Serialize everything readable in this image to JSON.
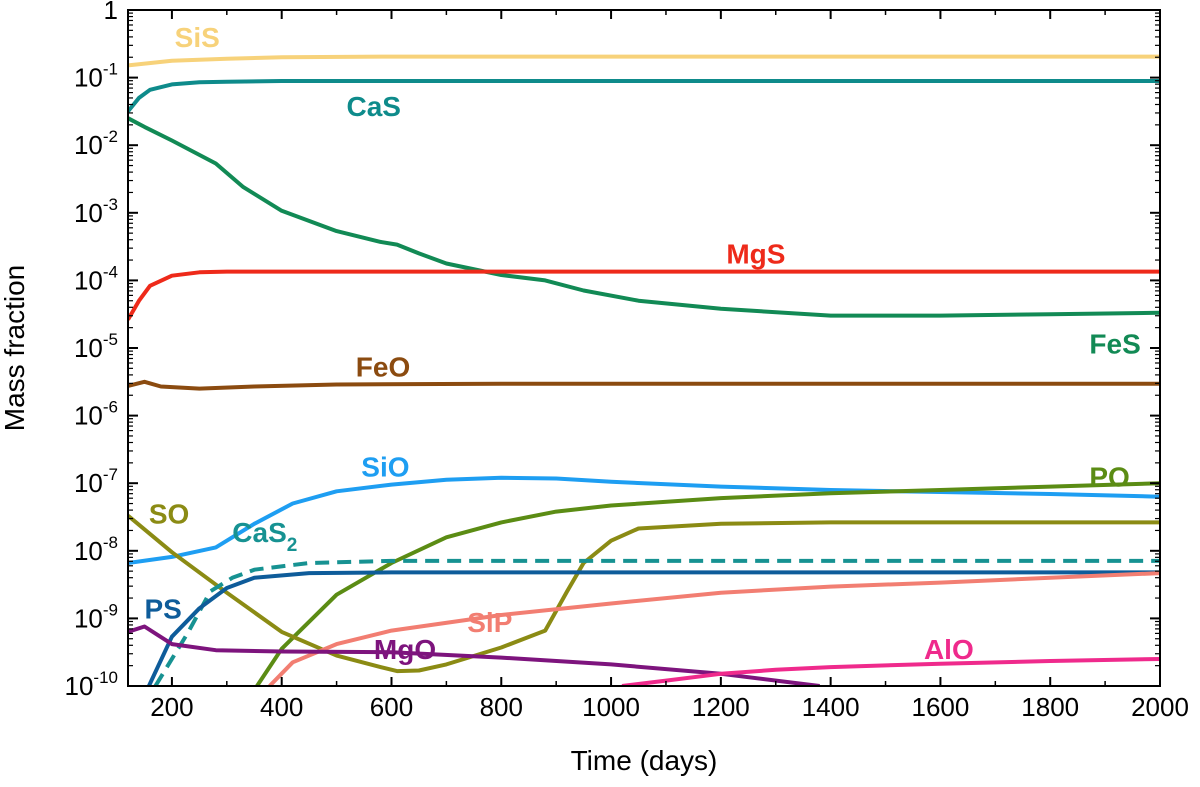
{
  "chart_data": {
    "type": "line",
    "title": "",
    "xlabel": "Time (days)",
    "ylabel": "Mass fraction",
    "xlim": [
      120,
      2000
    ],
    "ylim_log10": [
      -10,
      0
    ],
    "yscale": "log",
    "grid": false,
    "x_ticks": [
      200,
      400,
      600,
      800,
      1000,
      1200,
      1400,
      1600,
      1800,
      2000
    ],
    "x_tick_labels": [
      "200",
      "400",
      "600",
      "800",
      "1000",
      "1200",
      "1400",
      "1600",
      "1800",
      "2000"
    ],
    "y_tick_labels": [
      {
        "exp": 0,
        "base": "1",
        "sup": ""
      },
      {
        "exp": -1,
        "base": "10",
        "sup": "-1"
      },
      {
        "exp": -2,
        "base": "10",
        "sup": "-2"
      },
      {
        "exp": -3,
        "base": "10",
        "sup": "-3"
      },
      {
        "exp": -4,
        "base": "10",
        "sup": "-4"
      },
      {
        "exp": -5,
        "base": "10",
        "sup": "-5"
      },
      {
        "exp": -6,
        "base": "10",
        "sup": "-6"
      },
      {
        "exp": -7,
        "base": "10",
        "sup": "-7"
      },
      {
        "exp": -8,
        "base": "10",
        "sup": "-8"
      },
      {
        "exp": -9,
        "base": "10",
        "sup": "-9"
      },
      {
        "exp": -10,
        "base": "10",
        "sup": "-10"
      }
    ],
    "series": [
      {
        "name": "SiS",
        "label": "SiS",
        "label_sub": "",
        "color": "#f7d27a",
        "dash": false,
        "label_pos": [
          205,
          -0.4
        ],
        "points": [
          [
            120,
            -0.82
          ],
          [
            200,
            -0.75
          ],
          [
            300,
            -0.72
          ],
          [
            400,
            -0.7
          ],
          [
            600,
            -0.69
          ],
          [
            1000,
            -0.69
          ],
          [
            1400,
            -0.69
          ],
          [
            2000,
            -0.69
          ]
        ]
      },
      {
        "name": "CaS",
        "label": "CaS",
        "label_sub": "",
        "color": "#0e8b8b",
        "dash": false,
        "label_pos": [
          518,
          -1.42
        ],
        "points": [
          [
            120,
            -1.5
          ],
          [
            140,
            -1.3
          ],
          [
            160,
            -1.18
          ],
          [
            200,
            -1.1
          ],
          [
            250,
            -1.07
          ],
          [
            300,
            -1.06
          ],
          [
            400,
            -1.05
          ],
          [
            1000,
            -1.05
          ],
          [
            2000,
            -1.05
          ]
        ]
      },
      {
        "name": "FeS",
        "label": "FeS",
        "label_sub": "",
        "color": "#128a55",
        "dash": false,
        "label_pos": [
          1965,
          -4.93
        ],
        "points": [
          [
            120,
            -1.6
          ],
          [
            150,
            -1.73
          ],
          [
            200,
            -1.93
          ],
          [
            280,
            -2.27
          ],
          [
            330,
            -2.62
          ],
          [
            400,
            -2.97
          ],
          [
            500,
            -3.27
          ],
          [
            580,
            -3.43
          ],
          [
            610,
            -3.47
          ],
          [
            650,
            -3.6
          ],
          [
            700,
            -3.75
          ],
          [
            800,
            -3.92
          ],
          [
            880,
            -4.0
          ],
          [
            950,
            -4.15
          ],
          [
            1050,
            -4.3
          ],
          [
            1200,
            -4.42
          ],
          [
            1400,
            -4.52
          ],
          [
            1600,
            -4.52
          ],
          [
            1800,
            -4.5
          ],
          [
            2000,
            -4.48
          ]
        ]
      },
      {
        "name": "MgS",
        "label": "MgS",
        "label_sub": "",
        "color": "#ee2a1a",
        "dash": false,
        "label_pos": [
          1210,
          -3.6
        ],
        "points": [
          [
            120,
            -4.58
          ],
          [
            140,
            -4.3
          ],
          [
            160,
            -4.08
          ],
          [
            200,
            -3.93
          ],
          [
            250,
            -3.88
          ],
          [
            300,
            -3.87
          ],
          [
            600,
            -3.87
          ],
          [
            1000,
            -3.87
          ],
          [
            2000,
            -3.87
          ]
        ]
      },
      {
        "name": "FeO",
        "label": "FeO",
        "label_sub": "",
        "color": "#8b4b10",
        "dash": false,
        "label_pos": [
          535,
          -5.27
        ],
        "points": [
          [
            120,
            -5.56
          ],
          [
            150,
            -5.5
          ],
          [
            180,
            -5.57
          ],
          [
            250,
            -5.6
          ],
          [
            350,
            -5.57
          ],
          [
            500,
            -5.54
          ],
          [
            800,
            -5.53
          ],
          [
            1200,
            -5.53
          ],
          [
            2000,
            -5.53
          ]
        ]
      },
      {
        "name": "SiO",
        "label": "SiO",
        "label_sub": "",
        "color": "#1e9ef2",
        "dash": false,
        "label_pos": [
          545,
          -6.75
        ],
        "points": [
          [
            120,
            -8.18
          ],
          [
            200,
            -8.09
          ],
          [
            280,
            -7.95
          ],
          [
            350,
            -7.6
          ],
          [
            420,
            -7.3
          ],
          [
            500,
            -7.12
          ],
          [
            600,
            -7.02
          ],
          [
            700,
            -6.95
          ],
          [
            800,
            -6.92
          ],
          [
            900,
            -6.93
          ],
          [
            1000,
            -6.98
          ],
          [
            1200,
            -7.05
          ],
          [
            1400,
            -7.1
          ],
          [
            1600,
            -7.13
          ],
          [
            1800,
            -7.16
          ],
          [
            2000,
            -7.2
          ]
        ]
      },
      {
        "name": "PO",
        "label": "PO",
        "label_sub": "",
        "color": "#5b8c14",
        "dash": false,
        "label_pos": [
          1945,
          -6.9
        ],
        "points": [
          [
            355,
            -10.0
          ],
          [
            400,
            -9.45
          ],
          [
            500,
            -8.65
          ],
          [
            600,
            -8.18
          ],
          [
            700,
            -7.8
          ],
          [
            800,
            -7.58
          ],
          [
            900,
            -7.42
          ],
          [
            1000,
            -7.33
          ],
          [
            1200,
            -7.22
          ],
          [
            1400,
            -7.15
          ],
          [
            1600,
            -7.1
          ],
          [
            1800,
            -7.05
          ],
          [
            2000,
            -7.0
          ]
        ]
      },
      {
        "name": "SO",
        "label": "SO",
        "label_sub": "",
        "color": "#8b8b14",
        "dash": false,
        "label_pos": [
          158,
          -7.45
        ],
        "points": [
          [
            120,
            -7.48
          ],
          [
            200,
            -8.02
          ],
          [
            300,
            -8.62
          ],
          [
            400,
            -9.2
          ],
          [
            500,
            -9.55
          ],
          [
            580,
            -9.72
          ],
          [
            610,
            -9.78
          ],
          [
            650,
            -9.77
          ],
          [
            700,
            -9.68
          ],
          [
            800,
            -9.43
          ],
          [
            880,
            -9.18
          ],
          [
            920,
            -8.6
          ],
          [
            950,
            -8.18
          ],
          [
            1000,
            -7.85
          ],
          [
            1050,
            -7.67
          ],
          [
            1200,
            -7.6
          ],
          [
            1400,
            -7.58
          ],
          [
            2000,
            -7.58
          ]
        ]
      },
      {
        "name": "CaS2",
        "label": "CaS",
        "label_sub": "2",
        "color": "#179292",
        "dash": true,
        "label_pos": [
          310,
          -7.72
        ],
        "points": [
          [
            170,
            -10.0
          ],
          [
            230,
            -9.2
          ],
          [
            270,
            -8.6
          ],
          [
            310,
            -8.4
          ],
          [
            350,
            -8.28
          ],
          [
            450,
            -8.18
          ],
          [
            600,
            -8.15
          ],
          [
            1000,
            -8.15
          ],
          [
            2000,
            -8.15
          ]
        ]
      },
      {
        "name": "PS",
        "label": "PS",
        "label_sub": "",
        "color": "#0e5c9a",
        "dash": false,
        "label_pos": [
          150,
          -8.85
        ],
        "points": [
          [
            158,
            -10.0
          ],
          [
            200,
            -9.27
          ],
          [
            250,
            -8.85
          ],
          [
            300,
            -8.55
          ],
          [
            350,
            -8.4
          ],
          [
            450,
            -8.33
          ],
          [
            600,
            -8.32
          ],
          [
            1000,
            -8.32
          ],
          [
            2000,
            -8.32
          ]
        ]
      },
      {
        "name": "SiP",
        "label": "SiP",
        "label_sub": "",
        "color": "#f27e72",
        "dash": false,
        "label_pos": [
          738,
          -9.05
        ],
        "points": [
          [
            378,
            -10.0
          ],
          [
            420,
            -9.65
          ],
          [
            500,
            -9.38
          ],
          [
            600,
            -9.18
          ],
          [
            800,
            -8.95
          ],
          [
            1000,
            -8.78
          ],
          [
            1200,
            -8.62
          ],
          [
            1400,
            -8.53
          ],
          [
            1600,
            -8.47
          ],
          [
            1800,
            -8.4
          ],
          [
            2000,
            -8.33
          ]
        ]
      },
      {
        "name": "MgO",
        "label": "MgO",
        "label_sub": "",
        "color": "#7d147d",
        "dash": false,
        "label_pos": [
          568,
          -9.45
        ],
        "points": [
          [
            120,
            -9.2
          ],
          [
            150,
            -9.12
          ],
          [
            200,
            -9.38
          ],
          [
            280,
            -9.47
          ],
          [
            400,
            -9.49
          ],
          [
            600,
            -9.5
          ],
          [
            800,
            -9.58
          ],
          [
            1000,
            -9.68
          ],
          [
            1200,
            -9.82
          ],
          [
            1380,
            -10.0
          ]
        ]
      },
      {
        "name": "AlO",
        "label": "AlO",
        "label_sub": "",
        "color": "#ef2a8c",
        "dash": false,
        "label_pos": [
          1570,
          -9.45
        ],
        "points": [
          [
            1020,
            -10.0
          ],
          [
            1100,
            -9.92
          ],
          [
            1200,
            -9.82
          ],
          [
            1300,
            -9.76
          ],
          [
            1400,
            -9.72
          ],
          [
            1600,
            -9.67
          ],
          [
            1800,
            -9.63
          ],
          [
            2000,
            -9.6
          ]
        ]
      }
    ]
  }
}
